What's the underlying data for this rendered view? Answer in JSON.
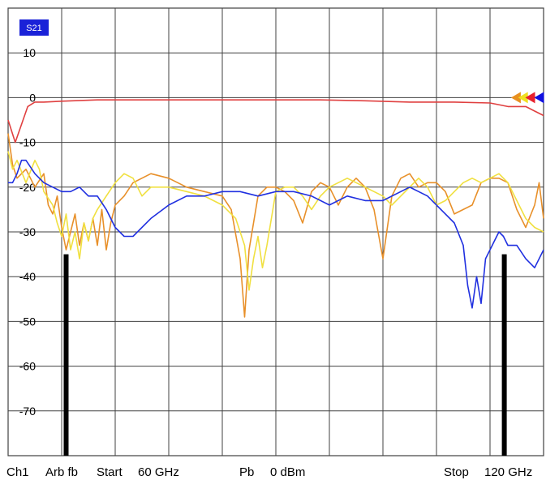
{
  "trace_label": "S21",
  "footer": {
    "channel": "Ch1",
    "mode": "Arb fb",
    "start_label": "Start",
    "start_value": "60 GHz",
    "power_label": "Pb",
    "power_value": "0 dBm",
    "stop_label": "Stop",
    "stop_value": "120 GHz"
  },
  "colors": {
    "background": "#ffffff",
    "grid": "#404040",
    "trace_label_bg": "#1a22d8",
    "marker_bar": "#000000"
  },
  "chart_data": {
    "type": "line",
    "title": "",
    "xlabel": "",
    "ylabel": "",
    "xlim": [
      60,
      120
    ],
    "ylim": [
      -80,
      20
    ],
    "y_ticks": [
      10,
      0,
      -10,
      -20,
      -30,
      -40,
      -50,
      -60,
      -70
    ],
    "y_tick_labels": [
      "10",
      "0",
      "-10",
      "-20",
      "-30",
      "-40",
      "-50",
      "-60",
      "-70"
    ],
    "x_divisions": 10,
    "grid": true,
    "limit_bars": [
      {
        "x": 66.5,
        "y_top": -35,
        "y_bottom": -80
      },
      {
        "x": 115.6,
        "y_top": -35,
        "y_bottom": -80
      }
    ],
    "markers": [
      {
        "color": "#e89020",
        "x": 116.9,
        "y": 0
      },
      {
        "color": "#f0e020",
        "x": 117.7,
        "y": 0
      },
      {
        "color": "#e8202c",
        "x": 118.5,
        "y": 0
      },
      {
        "color": "#1010e0",
        "x": 119.5,
        "y": 0
      }
    ],
    "series": [
      {
        "color": "#e04040",
        "x": [
          60,
          60.8,
          61.5,
          62.2,
          63,
          64,
          66,
          70,
          75,
          80,
          85,
          90,
          95,
          100,
          105,
          110,
          114,
          116,
          118,
          119,
          120
        ],
        "y": [
          -5,
          -10,
          -6,
          -2,
          -1,
          -1,
          -0.8,
          -0.5,
          -0.5,
          -0.5,
          -0.5,
          -0.5,
          -0.5,
          -0.7,
          -1,
          -1,
          -1.2,
          -2,
          -2,
          -3,
          -4
        ]
      },
      {
        "color": "#e8902a",
        "x": [
          60,
          60.5,
          61,
          62,
          63,
          64,
          64.5,
          65,
          65.5,
          66,
          66.5,
          67,
          67.5,
          68,
          68.5,
          69,
          69.5,
          70,
          70.5,
          71,
          71.5,
          72,
          73,
          74,
          76,
          78,
          80,
          82,
          84,
          85,
          86,
          86.5,
          87,
          87.5,
          88,
          89,
          90,
          91,
          92,
          93,
          94,
          95,
          96,
          97,
          98,
          99,
          100,
          101,
          102,
          103,
          104,
          105,
          106,
          107,
          108,
          109,
          110,
          111,
          112,
          113,
          114,
          115,
          116,
          117,
          118,
          119,
          119.5,
          120
        ],
        "y": [
          -8,
          -15,
          -18,
          -16,
          -20,
          -17,
          -24,
          -26,
          -22,
          -29,
          -34,
          -30,
          -26,
          -33,
          -28,
          -32,
          -27,
          -33,
          -25,
          -34,
          -28,
          -24,
          -22,
          -19,
          -17,
          -18,
          -20,
          -21,
          -22,
          -25,
          -36,
          -49,
          -34,
          -28,
          -22,
          -20,
          -20,
          -21,
          -23,
          -28,
          -21,
          -19,
          -20,
          -24,
          -20,
          -18,
          -20,
          -25,
          -36,
          -22,
          -18,
          -17,
          -20,
          -19,
          -19,
          -21,
          -26,
          -25,
          -24,
          -19,
          -18,
          -18,
          -19,
          -25,
          -29,
          -24,
          -19,
          -27
        ]
      },
      {
        "color": "#f0e040",
        "x": [
          60,
          60.5,
          61,
          62,
          63,
          63.5,
          64,
          65,
          65.5,
          66,
          66.5,
          67,
          67.5,
          68,
          68.5,
          69,
          69.5,
          70,
          71,
          72,
          73,
          74,
          75,
          76,
          78,
          80,
          82,
          84,
          85.5,
          86.5,
          87,
          87.5,
          88,
          88.5,
          89,
          90,
          91,
          92,
          93,
          94,
          95,
          96,
          97,
          98,
          99,
          100,
          101,
          102,
          103,
          104,
          105,
          106,
          107,
          108,
          109,
          110,
          111,
          112,
          113,
          114,
          115,
          116,
          117,
          118,
          119,
          120
        ],
        "y": [
          -12,
          -16,
          -14,
          -19,
          -14,
          -16,
          -21,
          -24,
          -28,
          -31,
          -26,
          -34,
          -30,
          -36,
          -28,
          -32,
          -27,
          -25,
          -22,
          -19,
          -17,
          -18,
          -22,
          -20,
          -20,
          -21,
          -22,
          -24,
          -27,
          -33,
          -43,
          -36,
          -31,
          -38,
          -33,
          -21,
          -20,
          -20,
          -22,
          -25,
          -22,
          -20,
          -19,
          -18,
          -19,
          -20,
          -21,
          -22,
          -24,
          -22,
          -20,
          -18,
          -20,
          -24,
          -23,
          -21,
          -19,
          -18,
          -19,
          -18,
          -17,
          -19,
          -23,
          -27,
          -29,
          -30
        ]
      },
      {
        "color": "#2030e0",
        "x": [
          60,
          60.5,
          61,
          61.5,
          62,
          63,
          64,
          65,
          66,
          67,
          68,
          69,
          70,
          71,
          72,
          73,
          74,
          76,
          78,
          80,
          82,
          84,
          86,
          88,
          90,
          92,
          94,
          96,
          98,
          100,
          102,
          104,
          105,
          106,
          107,
          108,
          109,
          110,
          111,
          111.5,
          112,
          112.5,
          113,
          113.5,
          114,
          114.5,
          115,
          115.5,
          116,
          117,
          118,
          119,
          120
        ],
        "y": [
          -19,
          -19,
          -17,
          -14,
          -14,
          -17,
          -19,
          -20,
          -21,
          -21,
          -20,
          -22,
          -22,
          -25,
          -29,
          -31,
          -31,
          -27,
          -24,
          -22,
          -22,
          -21,
          -21,
          -22,
          -21,
          -21,
          -22,
          -24,
          -22,
          -23,
          -23,
          -21,
          -20,
          -21,
          -22,
          -24,
          -26,
          -28,
          -33,
          -42,
          -47,
          -40,
          -46,
          -36,
          -34,
          -32,
          -30,
          -31,
          -33,
          -33,
          -36,
          -38,
          -34
        ]
      }
    ]
  }
}
